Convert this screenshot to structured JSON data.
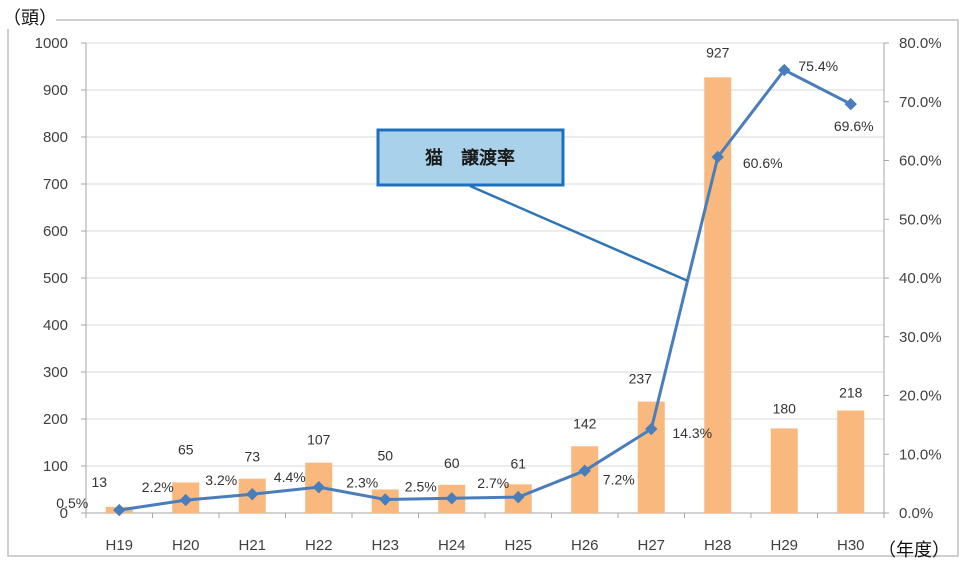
{
  "chart_data": {
    "type": "bar",
    "categories": [
      "H19",
      "H20",
      "H21",
      "H22",
      "H23",
      "H24",
      "H25",
      "H26",
      "H27",
      "H28",
      "H29",
      "H30"
    ],
    "series": [
      {
        "type": "bar",
        "axis": "left",
        "values": [
          13,
          65,
          73,
          107,
          50,
          60,
          61,
          142,
          237,
          927,
          180,
          218
        ],
        "labels": [
          "13",
          "65",
          "73",
          "107",
          "50",
          "60",
          "61",
          "142",
          "237",
          "927",
          "180",
          "218"
        ],
        "color": "#F9B97E"
      },
      {
        "type": "line",
        "axis": "right",
        "name": "猫　譲渡率",
        "values": [
          0.5,
          2.2,
          3.2,
          4.4,
          2.3,
          2.5,
          2.7,
          7.2,
          14.3,
          60.6,
          75.4,
          69.6
        ],
        "labels": [
          "0.5%",
          "2.2%",
          "3.2%",
          "4.4%",
          "2.3%",
          "2.5%",
          "2.7%",
          "7.2%",
          "14.3%",
          "60.6%",
          "75.4%",
          "69.6%"
        ],
        "color": "#4A7EBB",
        "marker": "diamond"
      }
    ],
    "y_left": {
      "unit_label": "（頭）",
      "ylim": [
        0,
        1000
      ],
      "ticks": [
        0,
        100,
        200,
        300,
        400,
        500,
        600,
        700,
        800,
        900,
        1000
      ],
      "tick_labels": [
        "0",
        "100",
        "200",
        "300",
        "400",
        "500",
        "600",
        "700",
        "800",
        "900",
        "1000"
      ]
    },
    "y_right": {
      "ylim": [
        0,
        80
      ],
      "ticks": [
        0,
        10,
        20,
        30,
        40,
        50,
        60,
        70,
        80
      ],
      "tick_labels": [
        "0.0%",
        "10.0%",
        "20.0%",
        "30.0%",
        "40.0%",
        "50.0%",
        "60.0%",
        "70.0%",
        "80.0%"
      ]
    },
    "x_unit_label": "（年度）",
    "callout": {
      "fill": "#A9D2EA",
      "border": "#1F6FBF"
    },
    "grid": true,
    "legend": "none"
  }
}
